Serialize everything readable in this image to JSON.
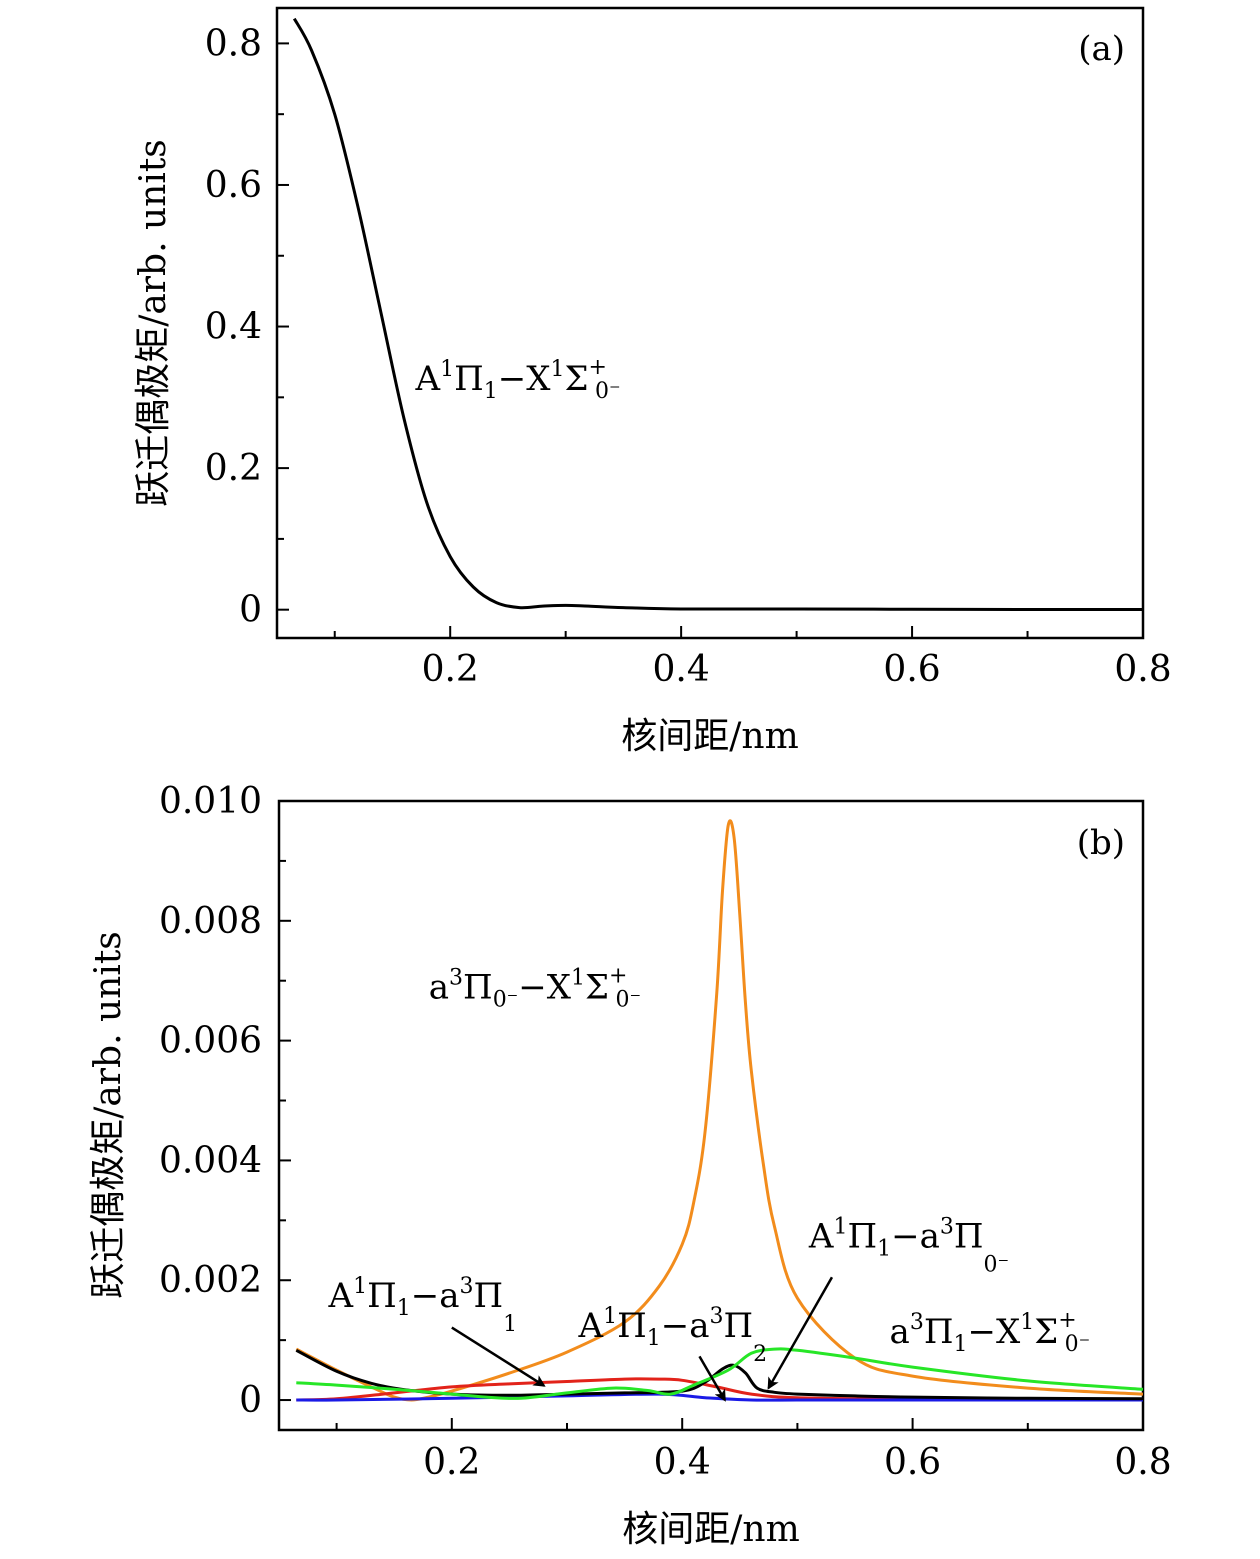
{
  "figure": {
    "panels": [
      {
        "tag": "(a)",
        "xlabel": "核间距/nm",
        "ylabel": "跃迁偶极矩/arb. units",
        "xticks": [
          "0.2",
          "0.4",
          "0.6",
          "0.8"
        ],
        "yticks": [
          "0",
          "0.2",
          "0.4",
          "0.6",
          "0.8"
        ]
      },
      {
        "tag": "(b)",
        "xlabel": "核间距/nm",
        "ylabel": "跃迁偶极矩/arb. units",
        "xticks": [
          "0.2",
          "0.4",
          "0.6",
          "0.8"
        ],
        "yticks": [
          "0",
          "0.002",
          "0.004",
          "0.006",
          "0.008",
          "0.010"
        ]
      }
    ]
  },
  "chart_data": [
    {
      "type": "line",
      "panel": "(a)",
      "xlabel": "核间距/nm",
      "ylabel": "跃迁偶极矩/arb. units",
      "xlim": [
        0.05,
        0.8
      ],
      "ylim": [
        -0.04,
        0.85
      ],
      "grid": false,
      "series": [
        {
          "name": "A1Π1−X1Σ+0−",
          "color": "#000000",
          "x": [
            0.065,
            0.08,
            0.1,
            0.12,
            0.14,
            0.16,
            0.18,
            0.2,
            0.22,
            0.24,
            0.26,
            0.28,
            0.3,
            0.32,
            0.35,
            0.4,
            0.5,
            0.6,
            0.7,
            0.8
          ],
          "y": [
            0.835,
            0.79,
            0.7,
            0.57,
            0.42,
            0.27,
            0.15,
            0.075,
            0.032,
            0.01,
            0.003,
            0.005,
            0.006,
            0.005,
            0.003,
            0.001,
            0.001,
            0.0005,
            0.0003,
            0.0002
          ]
        }
      ],
      "labels": [
        {
          "base": "A",
          "sup1": "1",
          "mid": "Π",
          "sub1": "1",
          "sep": "−X",
          "sup2": "1",
          "tail": "Σ",
          "sup3": "+",
          "sub3": "0⁻",
          "x": 0.17,
          "y": 0.31
        }
      ]
    },
    {
      "type": "line",
      "panel": "(b)",
      "xlabel": "核间距/nm",
      "ylabel": "跃迁偶极矩/arb. units",
      "xlim": [
        0.05,
        0.8
      ],
      "ylim": [
        -0.0005,
        0.01
      ],
      "grid": false,
      "series": [
        {
          "name": "a3Π0−−X1Σ+0−",
          "color": "#f28c1c",
          "x": [
            0.065,
            0.1,
            0.13,
            0.15,
            0.165,
            0.18,
            0.2,
            0.25,
            0.3,
            0.35,
            0.38,
            0.4,
            0.41,
            0.42,
            0.43,
            0.435,
            0.44,
            0.445,
            0.45,
            0.455,
            0.46,
            0.47,
            0.48,
            0.5,
            0.55,
            0.6,
            0.7,
            0.8
          ],
          "y": [
            0.00085,
            0.0005,
            0.00022,
            5e-05,
            0.0,
            5e-05,
            0.00015,
            0.00045,
            0.0008,
            0.0013,
            0.0019,
            0.0026,
            0.0033,
            0.0045,
            0.0068,
            0.0085,
            0.0096,
            0.0094,
            0.0081,
            0.0066,
            0.0055,
            0.004,
            0.0029,
            0.0017,
            0.0007,
            0.0004,
            0.0002,
            0.0001
          ]
        },
        {
          "name": "A1Π1−a3Π1",
          "color": "#e2231a",
          "x": [
            0.065,
            0.1,
            0.15,
            0.2,
            0.25,
            0.3,
            0.35,
            0.38,
            0.4,
            0.43,
            0.46,
            0.5,
            0.6,
            0.7,
            0.8
          ],
          "y": [
            0.0,
            2e-05,
            0.00012,
            0.00022,
            0.00027,
            0.00031,
            0.00035,
            0.00035,
            0.00033,
            0.00022,
            0.0001,
            4e-05,
            1e-05,
            0.0,
            0.0
          ]
        },
        {
          "name": "A1Π1−a3Π2",
          "color": "#1a1ae6",
          "x": [
            0.065,
            0.1,
            0.2,
            0.3,
            0.38,
            0.42,
            0.46,
            0.5,
            0.6,
            0.7,
            0.8
          ],
          "y": [
            0.0,
            0.0,
            3e-05,
            7e-05,
            0.0001,
            4e-05,
            0.0,
            0.0,
            0.0,
            0.0,
            0.0
          ]
        },
        {
          "name": "A1Π1−a3Π0−",
          "color": "#000000",
          "x": [
            0.065,
            0.1,
            0.13,
            0.16,
            0.2,
            0.25,
            0.3,
            0.35,
            0.4,
            0.42,
            0.435,
            0.445,
            0.455,
            0.465,
            0.48,
            0.5,
            0.55,
            0.6,
            0.7,
            0.8
          ],
          "y": [
            0.00083,
            0.00048,
            0.00028,
            0.00017,
            0.0001,
            8e-05,
            0.0001,
            0.00012,
            0.00015,
            0.0003,
            0.00052,
            0.00058,
            0.00045,
            0.0002,
            0.00013,
            0.0001,
            7e-05,
            5e-05,
            3e-05,
            2e-05
          ]
        },
        {
          "name": "a3Π1−X1Σ+0−",
          "color": "#27e627",
          "x": [
            0.065,
            0.1,
            0.15,
            0.2,
            0.23,
            0.26,
            0.3,
            0.34,
            0.37,
            0.39,
            0.41,
            0.44,
            0.46,
            0.48,
            0.5,
            0.55,
            0.6,
            0.7,
            0.8
          ],
          "y": [
            0.00029,
            0.00025,
            0.00018,
            0.0001,
            5e-05,
            3e-05,
            0.00012,
            0.0002,
            0.00016,
            0.0001,
            0.00025,
            0.0005,
            0.00078,
            0.00085,
            0.00083,
            0.0007,
            0.00055,
            0.00032,
            0.00018
          ]
        }
      ],
      "labels": [
        {
          "base": "a",
          "sup1": "3",
          "mid": "Π",
          "sub1": "0⁻",
          "sep": "−X",
          "sup2": "1",
          "tail": "Σ",
          "sup3": "+",
          "sub3": "0⁻",
          "x": 0.18,
          "y": 0.0067
        },
        {
          "base": "A",
          "sup1": "1",
          "mid": "Π",
          "sub1": "1",
          "sep": "−a",
          "sup2": "3",
          "tail": "Π",
          "sup3": "",
          "sub3": "1",
          "x": 0.093,
          "y": 0.00155
        },
        {
          "base": "A",
          "sup1": "1",
          "mid": "Π",
          "sub1": "1",
          "sep": "−a",
          "sup2": "3",
          "tail": "Π",
          "sup3": "",
          "sub3": "2",
          "x": 0.31,
          "y": 0.00105
        },
        {
          "base": "A",
          "sup1": "1",
          "mid": "Π",
          "sub1": "1",
          "sep": "−a",
          "sup2": "3",
          "tail": "Π",
          "sup3": "",
          "sub3": "0⁻",
          "x": 0.51,
          "y": 0.00255
        },
        {
          "base": "a",
          "sup1": "3",
          "mid": "Π",
          "sub1": "1",
          "sep": "−X",
          "sup2": "1",
          "tail": "Σ",
          "sup3": "+",
          "sub3": "0⁻",
          "x": 0.58,
          "y": 0.00095
        }
      ],
      "arrows": [
        {
          "from": [
            0.2,
            0.00121
          ],
          "to": [
            0.28,
            0.00024
          ]
        },
        {
          "from": [
            0.415,
            0.00073
          ],
          "to": [
            0.437,
            0.0
          ]
        },
        {
          "from": [
            0.53,
            0.00205
          ],
          "to": [
            0.475,
            0.0002
          ]
        }
      ]
    }
  ]
}
